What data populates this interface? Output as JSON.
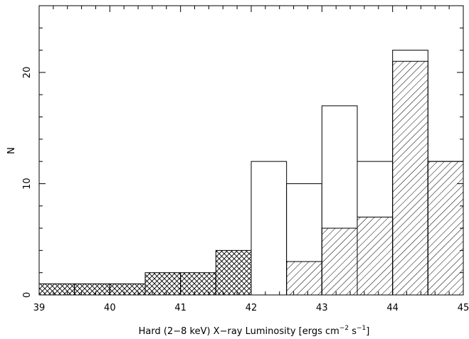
{
  "chart_data": {
    "type": "bar",
    "xlabel": "Hard (2−8 keV) X−ray Luminosity [ergs cm",
    "xlabel_exp1": "−2",
    "xlabel_mid": " s",
    "xlabel_exp2": "−1",
    "xlabel_end": "]",
    "ylabel": "N",
    "xlim": [
      39,
      45
    ],
    "ylim": [
      0,
      26
    ],
    "x_ticks": [
      "39",
      "40",
      "41",
      "42",
      "43",
      "44",
      "45"
    ],
    "y_ticks": [
      "0",
      "10",
      "20"
    ],
    "bin_width": 0.5,
    "series": [
      {
        "style": "open",
        "bins": [
          {
            "x": 42.0,
            "value": 12
          },
          {
            "x": 42.5,
            "value": 10
          },
          {
            "x": 43.0,
            "value": 17
          },
          {
            "x": 43.5,
            "value": 12
          },
          {
            "x": 44.0,
            "value": 22
          },
          {
            "x": 44.5,
            "value": 12
          }
        ]
      },
      {
        "style": "diagonal-hatch",
        "bins": [
          {
            "x": 42.5,
            "value": 3
          },
          {
            "x": 43.0,
            "value": 6
          },
          {
            "x": 43.5,
            "value": 7
          },
          {
            "x": 44.0,
            "value": 21
          },
          {
            "x": 44.5,
            "value": 12
          }
        ]
      },
      {
        "style": "cross-hatch",
        "bins": [
          {
            "x": 39.0,
            "value": 1
          },
          {
            "x": 39.5,
            "value": 1
          },
          {
            "x": 40.0,
            "value": 1
          },
          {
            "x": 40.5,
            "value": 2
          },
          {
            "x": 41.0,
            "value": 2
          },
          {
            "x": 41.5,
            "value": 4
          }
        ]
      }
    ],
    "colors": {
      "stroke": "#000000",
      "background": "#ffffff"
    }
  }
}
